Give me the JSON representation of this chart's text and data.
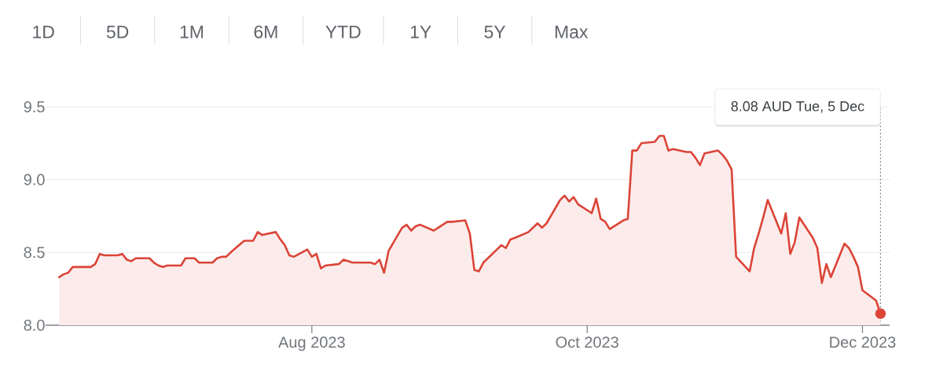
{
  "chart_data": {
    "type": "area",
    "x": [
      "2023-06-06",
      "2023-06-07",
      "2023-06-08",
      "2023-06-09",
      "2023-06-13",
      "2023-06-14",
      "2023-06-15",
      "2023-06-16",
      "2023-06-19",
      "2023-06-20",
      "2023-06-21",
      "2023-06-22",
      "2023-06-23",
      "2023-06-26",
      "2023-06-27",
      "2023-06-28",
      "2023-06-29",
      "2023-06-30",
      "2023-07-03",
      "2023-07-04",
      "2023-07-05",
      "2023-07-06",
      "2023-07-07",
      "2023-07-10",
      "2023-07-11",
      "2023-07-12",
      "2023-07-13",
      "2023-07-14",
      "2023-07-17",
      "2023-07-18",
      "2023-07-19",
      "2023-07-20",
      "2023-07-21",
      "2023-07-24",
      "2023-07-25",
      "2023-07-26",
      "2023-07-27",
      "2023-07-28",
      "2023-07-31",
      "2023-08-01",
      "2023-08-02",
      "2023-08-03",
      "2023-08-04",
      "2023-08-07",
      "2023-08-08",
      "2023-08-09",
      "2023-08-10",
      "2023-08-11",
      "2023-08-14",
      "2023-08-15",
      "2023-08-16",
      "2023-08-17",
      "2023-08-18",
      "2023-08-21",
      "2023-08-22",
      "2023-08-23",
      "2023-08-24",
      "2023-08-25",
      "2023-08-28",
      "2023-08-29",
      "2023-08-30",
      "2023-08-31",
      "2023-09-01",
      "2023-09-04",
      "2023-09-05",
      "2023-09-06",
      "2023-09-07",
      "2023-09-08",
      "2023-09-11",
      "2023-09-12",
      "2023-09-13",
      "2023-09-14",
      "2023-09-15",
      "2023-09-18",
      "2023-09-19",
      "2023-09-20",
      "2023-09-21",
      "2023-09-22",
      "2023-09-25",
      "2023-09-26",
      "2023-09-27",
      "2023-09-28",
      "2023-09-29",
      "2023-10-02",
      "2023-10-03",
      "2023-10-04",
      "2023-10-05",
      "2023-10-06",
      "2023-10-09",
      "2023-10-10",
      "2023-10-11",
      "2023-10-12",
      "2023-10-13",
      "2023-10-16",
      "2023-10-17",
      "2023-10-18",
      "2023-10-19",
      "2023-10-20",
      "2023-10-23",
      "2023-10-24",
      "2023-10-25",
      "2023-10-26",
      "2023-10-27",
      "2023-10-30",
      "2023-10-31",
      "2023-11-01",
      "2023-11-02",
      "2023-11-03",
      "2023-11-06",
      "2023-11-07",
      "2023-11-08",
      "2023-11-09",
      "2023-11-10",
      "2023-11-13",
      "2023-11-14",
      "2023-11-15",
      "2023-11-16",
      "2023-11-17",
      "2023-11-20",
      "2023-11-21",
      "2023-11-22",
      "2023-11-23",
      "2023-11-24",
      "2023-11-27",
      "2023-11-28",
      "2023-11-29",
      "2023-11-30",
      "2023-12-01",
      "2023-12-04",
      "2023-12-05"
    ],
    "series": [
      {
        "color": "#db4437",
        "values": [
          8.33,
          8.35,
          8.36,
          8.4,
          8.4,
          8.42,
          8.49,
          8.48,
          8.48,
          8.49,
          8.45,
          8.44,
          8.46,
          8.46,
          8.43,
          8.41,
          8.4,
          8.41,
          8.41,
          8.46,
          8.46,
          8.46,
          8.43,
          8.43,
          8.46,
          8.47,
          8.47,
          8.5,
          8.58,
          8.58,
          8.58,
          8.64,
          8.62,
          8.64,
          8.59,
          8.55,
          8.48,
          8.47,
          8.52,
          8.47,
          8.49,
          8.39,
          8.41,
          8.42,
          8.45,
          8.44,
          8.43,
          8.43,
          8.43,
          8.42,
          8.45,
          8.36,
          8.51,
          8.67,
          8.69,
          8.65,
          8.68,
          8.69,
          8.65,
          8.67,
          8.69,
          8.71,
          8.71,
          8.72,
          8.63,
          8.38,
          8.37,
          8.43,
          8.52,
          8.55,
          8.53,
          8.59,
          8.6,
          8.64,
          8.67,
          8.7,
          8.67,
          8.7,
          8.86,
          8.89,
          8.85,
          8.88,
          8.83,
          8.77,
          8.87,
          8.73,
          8.71,
          8.66,
          8.72,
          8.73,
          9.2,
          9.2,
          9.25,
          9.26,
          9.3,
          9.3,
          9.2,
          9.21,
          9.19,
          9.19,
          9.15,
          9.1,
          9.18,
          9.2,
          9.17,
          9.13,
          9.07,
          8.47,
          8.37,
          8.53,
          8.63,
          8.74,
          8.86,
          8.63,
          8.77,
          8.49,
          8.57,
          8.74,
          8.6,
          8.53,
          8.29,
          8.42,
          8.33,
          8.56,
          8.53,
          8.47,
          8.4,
          8.24,
          8.17,
          8.08
        ]
      },
      {
        "type": "scatter",
        "x": [
          "2023-12-05"
        ],
        "values": [
          8.08
        ],
        "color": "#db4437",
        "marker": "circle"
      }
    ],
    "xlim": [
      "2023-06-03",
      "2023-12-07"
    ],
    "xticks": [
      {
        "value": "2023-08-01",
        "label": "Aug 2023"
      },
      {
        "value": "2023-10-01",
        "label": "Oct 2023"
      },
      {
        "value": "2023-12-01",
        "label": "Dec 2023"
      }
    ],
    "ylim": [
      8,
      9.5
    ],
    "yticks": [
      {
        "value": 8,
        "label": "8.0"
      },
      8.5,
      {
        "value": 9,
        "label": "9.0"
      },
      9.5
    ],
    "grid": "y",
    "ref_lines": [
      {
        "axis": "x",
        "value": "2023-12-05",
        "label": "8.08 AUD  Tue, 5 Dec",
        "color": "#80868b",
        "line_style": "dotted"
      }
    ],
    "annotations": [
      "1D",
      "5D",
      "1M",
      "6M",
      "YTD",
      "1Y",
      "5Y",
      "Max"
    ]
  }
}
